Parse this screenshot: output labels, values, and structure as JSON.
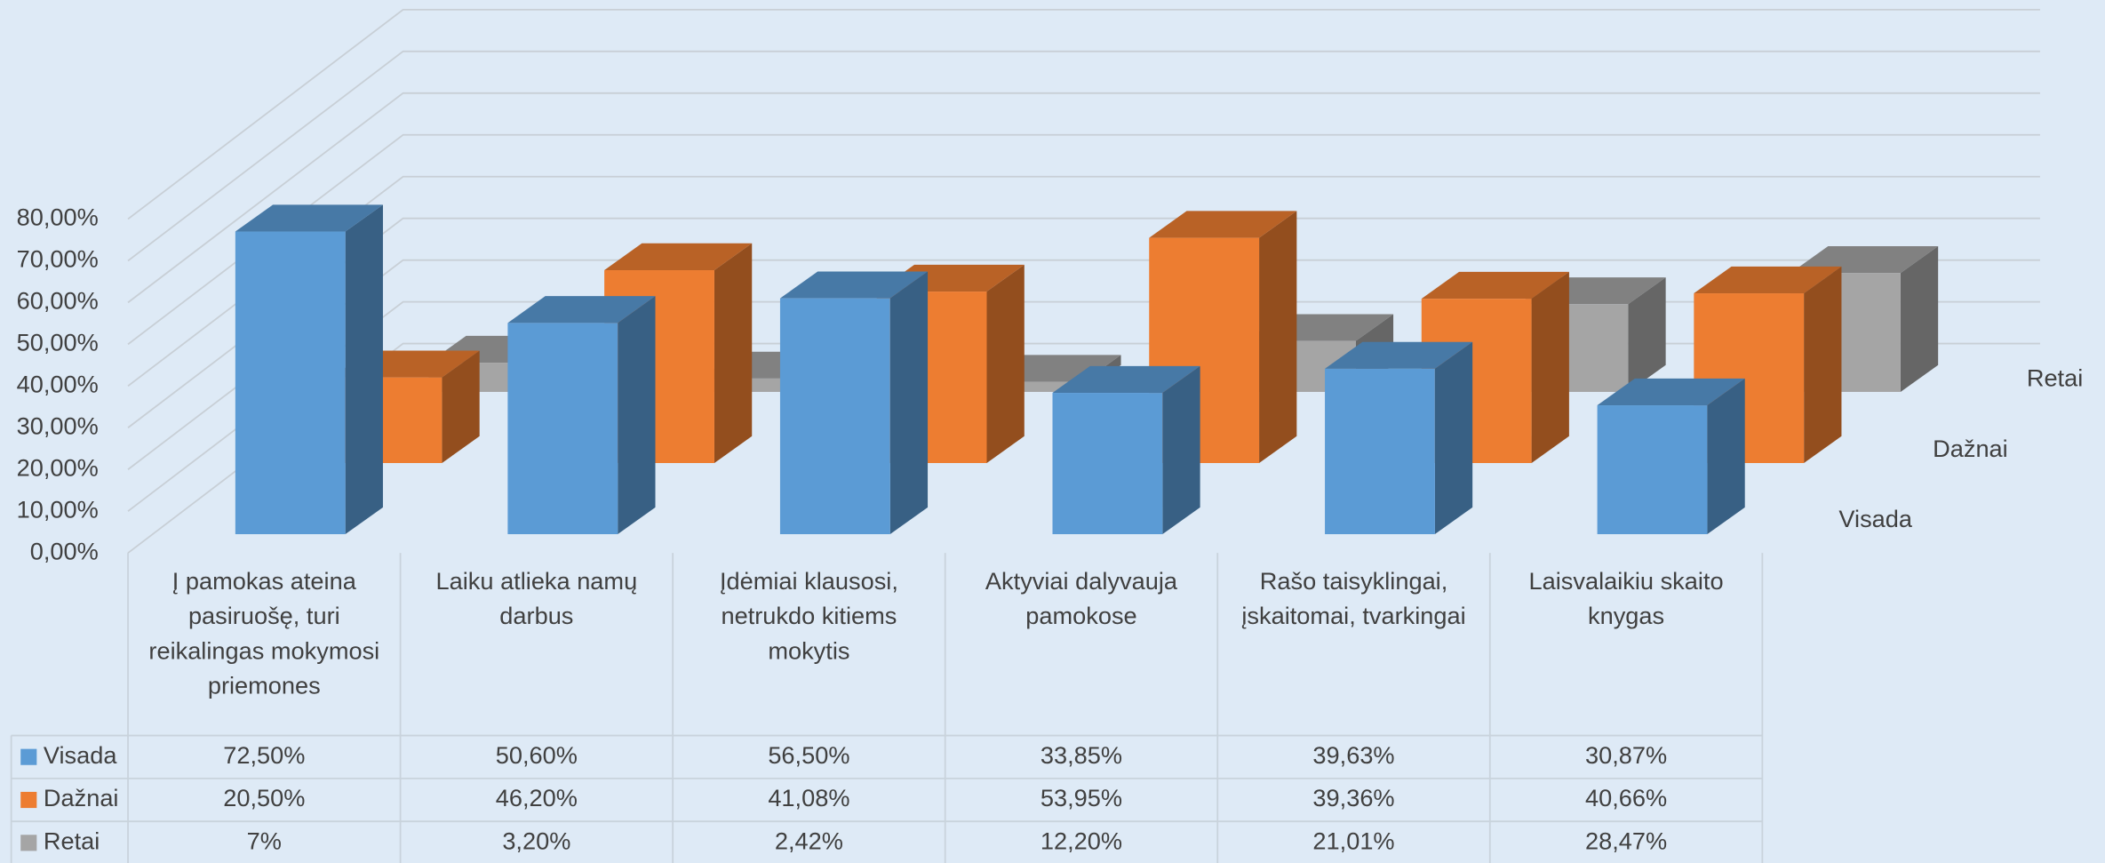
{
  "chart_data": {
    "type": "bar3d",
    "categories": [
      "Į pamokas ateina pasiruošę, turi reikalingas mokymosi priemones",
      "Laiku atlieka namų darbus",
      "Įdėmiai klausosi, netrukdo kitiems mokytis",
      "Aktyviai dalyvauja pamokose",
      "Rašo taisyklingai, įskaitomai, tvarkingai",
      "Laisvalaikiu skaito knygas"
    ],
    "series": [
      {
        "name": "Visada",
        "color": "#5b9bd5",
        "values": [
          72.5,
          50.6,
          56.5,
          33.85,
          39.63,
          30.87
        ],
        "value_labels": [
          "72,50%",
          "50,60%",
          "56,50%",
          "33,85%",
          "39,63%",
          "30,87%"
        ]
      },
      {
        "name": "Dažnai",
        "color": "#ed7d31",
        "values": [
          20.5,
          46.2,
          41.08,
          53.95,
          39.36,
          40.66
        ],
        "value_labels": [
          "20,50%",
          "46,20%",
          "41,08%",
          "53,95%",
          "39,36%",
          "40,66%"
        ]
      },
      {
        "name": "Retai",
        "color": "#a5a5a5",
        "values": [
          7,
          3.2,
          2.42,
          12.2,
          21.01,
          28.47
        ],
        "value_labels": [
          "7%",
          "3,20%",
          "2,42%",
          "12,20%",
          "21,01%",
          "28,47%"
        ]
      }
    ],
    "ylim": [
      0,
      80
    ],
    "yticks": [
      {
        "value": 0,
        "label": "0,00%"
      },
      {
        "value": 10,
        "label": "10,00%"
      },
      {
        "value": 20,
        "label": "20,00%"
      },
      {
        "value": 30,
        "label": "30,00%"
      },
      {
        "value": 40,
        "label": "40,00%"
      },
      {
        "value": 50,
        "label": "50,00%"
      },
      {
        "value": 60,
        "label": "60,00%"
      },
      {
        "value": 70,
        "label": "70,00%"
      },
      {
        "value": 80,
        "label": "80,00%"
      }
    ],
    "grid": true,
    "data_table": true
  }
}
